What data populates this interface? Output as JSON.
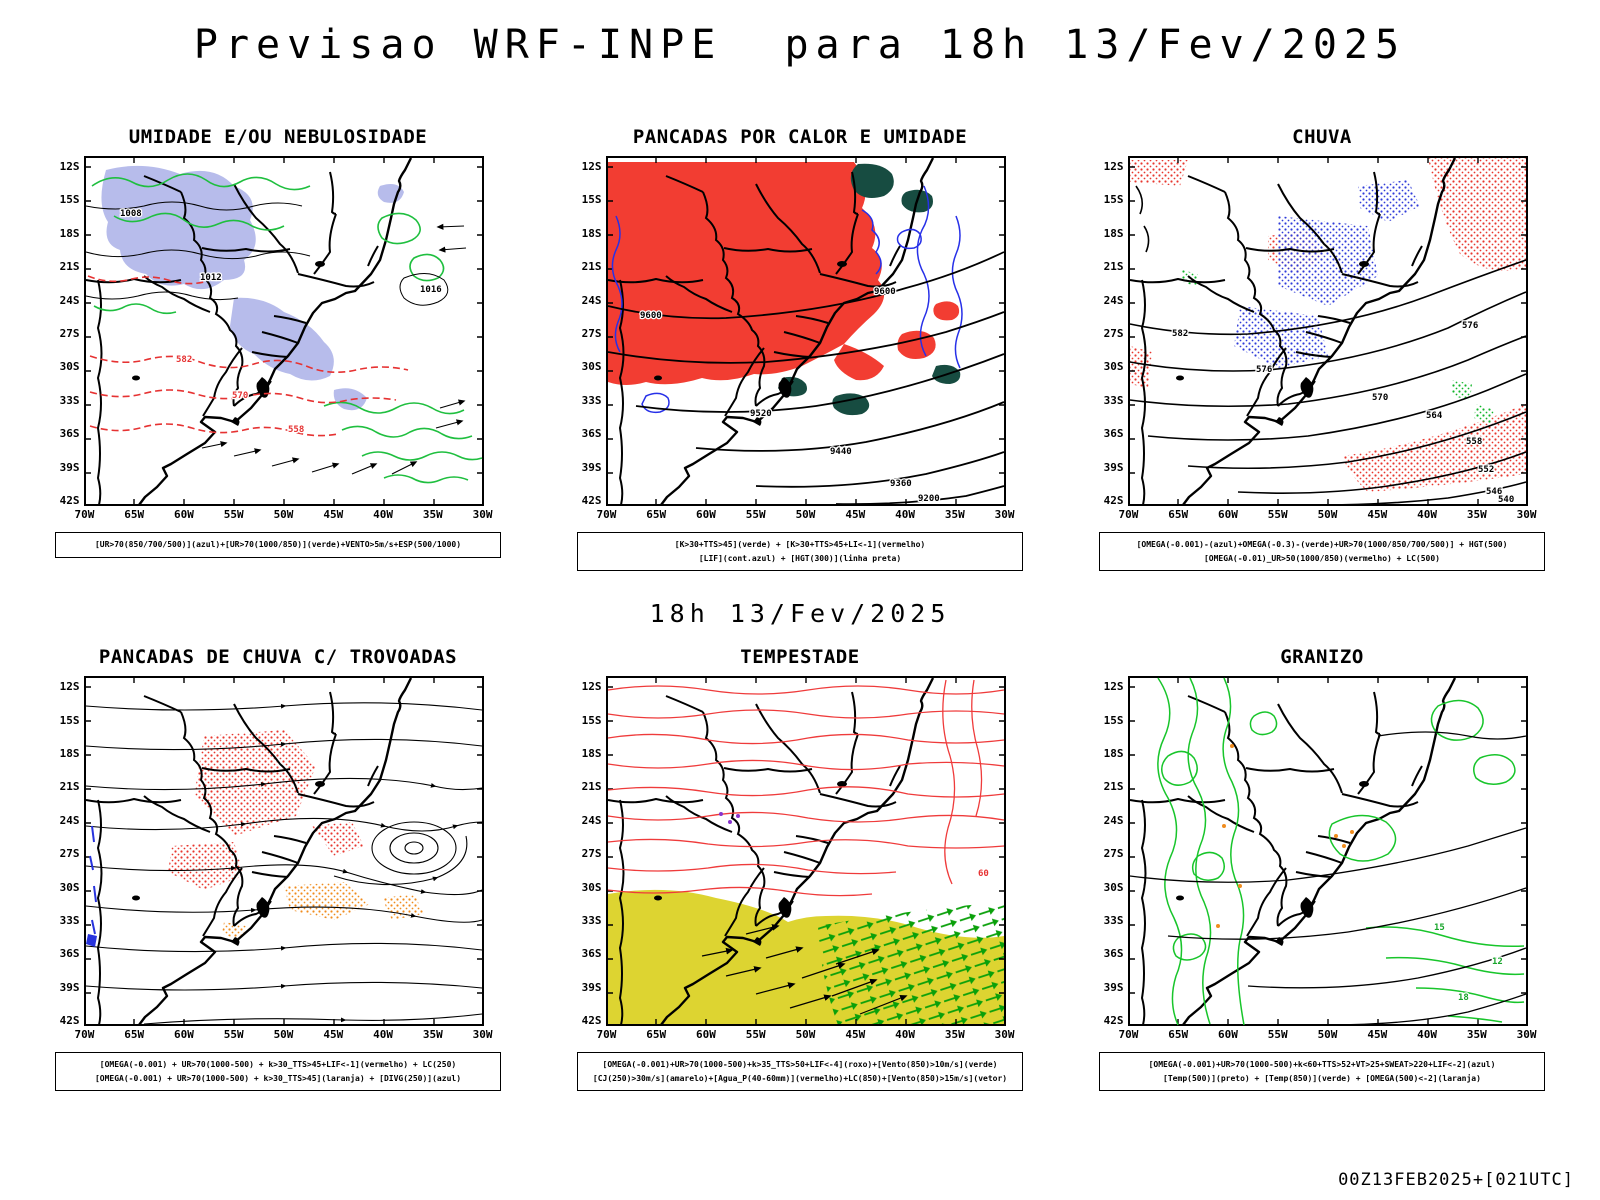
{
  "page": {
    "title": "Previsao WRF-INPE  para 18h 13/Fev/2025",
    "subtitle": "18h 13/Fev/2025",
    "footer": "00Z13FEB2025+[021UTC]"
  },
  "axis": {
    "lat": [
      "12S",
      "15S",
      "18S",
      "21S",
      "24S",
      "27S",
      "30S",
      "33S",
      "36S",
      "39S",
      "42S"
    ],
    "lon": [
      "70W",
      "65W",
      "60W",
      "55W",
      "50W",
      "45W",
      "40W",
      "35W",
      "30W"
    ]
  },
  "colors": {
    "green": "#1fbf3f",
    "red": "#e63232",
    "blue": "#2730e8",
    "orange": "#f08c1e",
    "yellow": "#ddd431",
    "purple": "#8833cc",
    "dark_teal": "#174c41",
    "lavender": "#aab0e8"
  },
  "panels": [
    {
      "id": "umidade",
      "title": "UMIDADE E/OU NEBULOSIDADE",
      "caption": [
        "[UR>70(850/700/500)](azul)+[UR>70(1000/850)](verde)+VENTO>5m/s+ESP(500/1000)",
        ""
      ],
      "contour_labels": [
        "1008",
        "1012",
        "1016",
        "582",
        "570",
        "558"
      ]
    },
    {
      "id": "pancadas-calor",
      "title": "PANCADAS POR CALOR E UMIDADE",
      "caption": [
        "[K>30+TTS>45](verde) + [K>30+TTS>45+LI<-1](vermelho)",
        "[LIF](cont.azul) + [HGT(300)](linha preta)"
      ],
      "contour_labels": [
        "9600",
        "9600",
        "9520",
        "9440",
        "9360",
        "9200"
      ]
    },
    {
      "id": "chuva",
      "title": "CHUVA",
      "caption": [
        "[OMEGA(-0.001)-(azul)+OMEGA(-0.3)-(verde)+UR>70(1000/850/700/500)] + HGT(500)",
        "[OMEGA(-0.01)_UR>50(1000/850)(vermelho) + LC(500)"
      ],
      "contour_labels": [
        "582",
        "576",
        "576",
        "570",
        "564",
        "558",
        "552",
        "546",
        "540"
      ]
    },
    {
      "id": "trovoadas",
      "title": "PANCADAS DE CHUVA C/ TROVOADAS",
      "caption": [
        "[OMEGA(-0.001) + UR>70(1000-500) + k>30_TTS>45+LIF<-1](vermelho) + LC(250)",
        "[OMEGA(-0.001) + UR>70(1000-500) + k>30_TTS>45](laranja) + [DIVG(250)](azul)"
      ],
      "contour_labels": []
    },
    {
      "id": "tempestade",
      "title": "TEMPESTADE",
      "caption": [
        "[OMEGA(-0.001)+UR>70(1000-500)+k>35_TTS>50+LIF<-4](roxo)+[Vento(850)>10m/s](verde)",
        "[CJ(250)>30m/s](amarelo)+[Agua_P(40-60mm)](vermelho)+LC(850)+[Vento(850)>15m/s](vetor)"
      ],
      "contour_labels": [
        "60"
      ]
    },
    {
      "id": "granizo",
      "title": "GRANIZO",
      "caption": [
        "[OMEGA(-0.001)+UR>70(1000-500)+k<60+TTS>52+VT>25+SWEAT>220+LIF<-2](azul)",
        "[Temp(500)](preto) + [Temp(850)](verde) + [OMEGA(500)<-2](laranja)"
      ],
      "contour_labels": [
        "15",
        "12",
        "18"
      ]
    }
  ]
}
